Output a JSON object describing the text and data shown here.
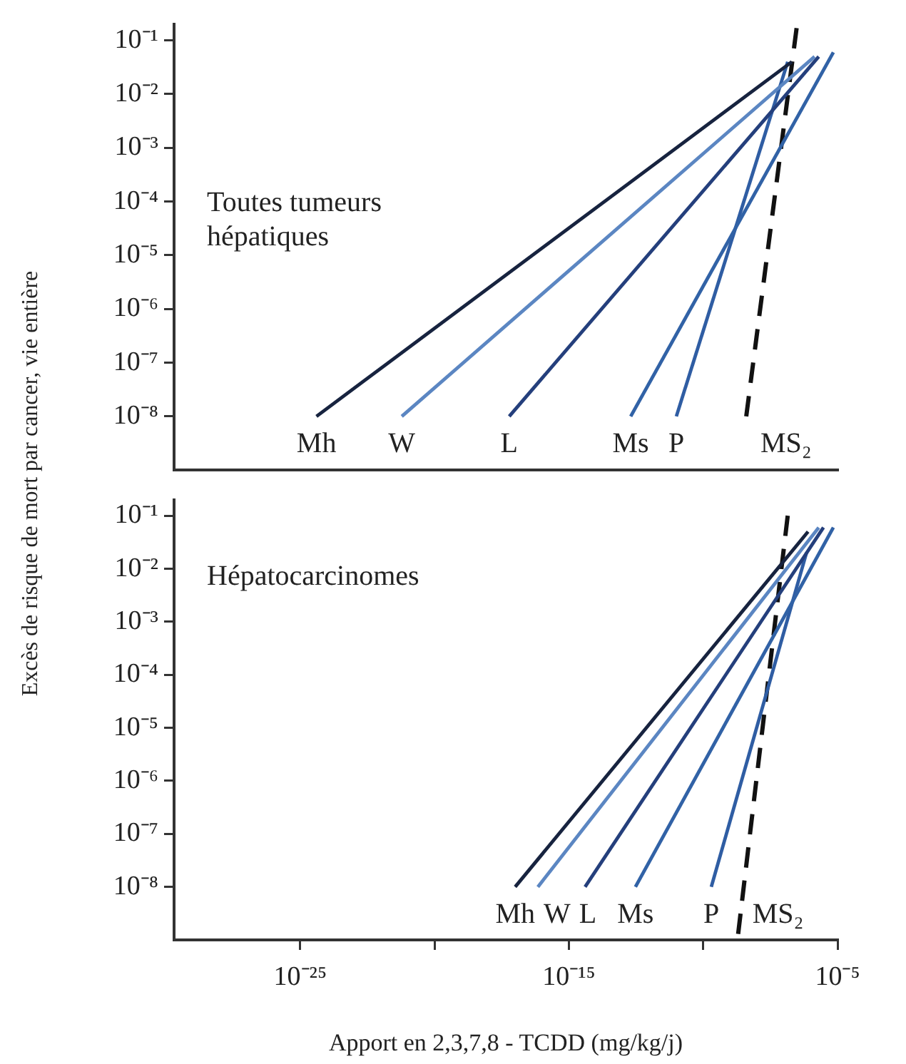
{
  "chart_data": [
    {
      "type": "line",
      "log": "xy",
      "marker": "none",
      "tick_labels": "y",
      "legend": false,
      "ylabel": "Excès de risque de mort par cancer, vie entière",
      "annotations": [
        "Toutes tumeurs hépatiques"
      ],
      "xlim": [
        2e-30,
        1e-05
      ],
      "ylim": [
        1e-09,
        0.2
      ],
      "yticks": [
        {
          "value": 0.1,
          "label": "10⁻¹"
        },
        {
          "value": 0.01,
          "label": "10⁻²"
        },
        {
          "value": 0.001,
          "label": "10⁻³"
        },
        {
          "value": 0.0001,
          "label": "10⁻⁴"
        },
        {
          "value": 1e-05,
          "label": "10⁻⁵"
        },
        {
          "value": 1e-06,
          "label": "10⁻⁶"
        },
        {
          "value": 1e-07,
          "label": "10⁻⁷"
        },
        {
          "value": 1e-08,
          "label": "10⁻⁸"
        }
      ],
      "series": [
        {
          "name": "Mh",
          "color": "#17233f",
          "x": [
            4e-25,
            2e-07
          ],
          "values": [
            1e-08,
            0.04
          ]
        },
        {
          "name": "W",
          "color": "#5b86c2",
          "x": [
            6e-22,
            1.4e-06
          ],
          "values": [
            1e-08,
            0.05
          ]
        },
        {
          "name": "L",
          "color": "#243f7c",
          "x": [
            6e-18,
            2e-06
          ],
          "values": [
            1e-08,
            0.05
          ]
        },
        {
          "name": "Ms",
          "color": "#3162a6",
          "x": [
            2e-13,
            7e-06
          ],
          "values": [
            1e-08,
            0.06
          ]
        },
        {
          "name": "P",
          "color": "#2f5da3",
          "x": [
            1e-11,
            1.4e-07
          ],
          "values": [
            1e-08,
            0.04
          ]
        },
        {
          "name": "MS₂",
          "color": "#111111",
          "line_style": "dashed",
          "x": [
            4e-09,
            3e-07
          ],
          "values": [
            1e-08,
            0.17
          ]
        }
      ]
    },
    {
      "type": "line",
      "log": "xy",
      "marker": "none",
      "legend": false,
      "xlabel": "Apport en 2,3,7,8 - TCDD (mg/kg/j)",
      "annotations": [
        "Hépatocarcinomes"
      ],
      "xlim": [
        2e-30,
        1e-05
      ],
      "xticks": [
        {
          "value": 1e-25,
          "label": "10⁻²⁵"
        },
        {
          "value": 1e-20,
          "label": null
        },
        {
          "value": 1e-15,
          "label": "10⁻¹⁵"
        },
        {
          "value": 1e-10,
          "label": null
        },
        {
          "value": 1e-05,
          "label": "10⁻⁵"
        }
      ],
      "ylim": [
        1e-09,
        0.2
      ],
      "yticks": [
        {
          "value": 0.1,
          "label": "10⁻¹"
        },
        {
          "value": 0.01,
          "label": "10⁻²"
        },
        {
          "value": 0.001,
          "label": "10⁻³"
        },
        {
          "value": 0.0001,
          "label": "10⁻⁴"
        },
        {
          "value": 1e-05,
          "label": "10⁻⁵"
        },
        {
          "value": 1e-06,
          "label": "10⁻⁶"
        },
        {
          "value": 1e-07,
          "label": "10⁻⁷"
        },
        {
          "value": 1e-08,
          "label": "10⁻⁸"
        }
      ],
      "series": [
        {
          "name": "Mh",
          "color": "#17233f",
          "x": [
            1e-17,
            8e-07
          ],
          "values": [
            1e-08,
            0.05
          ]
        },
        {
          "name": "W",
          "color": "#5b86c2",
          "x": [
            7e-17,
            2e-06
          ],
          "values": [
            1e-08,
            0.06
          ]
        },
        {
          "name": "L",
          "color": "#243f7c",
          "x": [
            4e-15,
            3e-06
          ],
          "values": [
            1e-08,
            0.06
          ]
        },
        {
          "name": "Ms",
          "color": "#3162a6",
          "x": [
            3e-13,
            7e-06
          ],
          "values": [
            1e-08,
            0.06
          ]
        },
        {
          "name": "P",
          "color": "#2f5da3",
          "x": [
            2e-10,
            7e-07
          ],
          "values": [
            1e-08,
            0.02
          ]
        },
        {
          "name": "MS₂",
          "color": "#111111",
          "line_style": "dashed",
          "x": [
            2e-09,
            1.4e-07
          ],
          "values": [
            1.3e-09,
            0.1
          ]
        }
      ]
    }
  ]
}
